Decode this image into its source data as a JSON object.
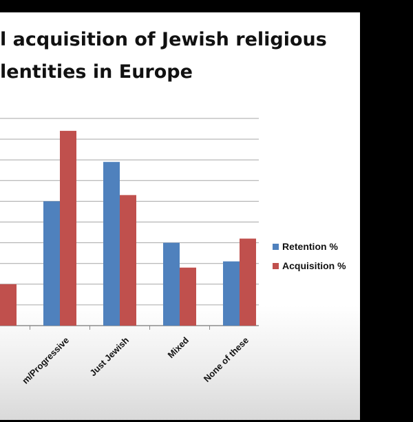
{
  "slide": {
    "title_line1": "l acquisition of Jewish religious",
    "title_line2": "lentities in Europe"
  },
  "chart_data": {
    "type": "bar",
    "title": "l acquisition of Jewish religious lentities in Europe",
    "xlabel": "",
    "ylabel": "",
    "categories": [
      "",
      "m/Progressive",
      "Just Jewish",
      "Mixed",
      "None of these"
    ],
    "series": [
      {
        "name": "Retention %",
        "color": "#4f81bd",
        "values": [
          null,
          6,
          7.9,
          4,
          3.1
        ]
      },
      {
        "name": "Acquisition %",
        "color": "#c0504d",
        "values": [
          2,
          9.4,
          6.3,
          2.8,
          4.2
        ]
      }
    ],
    "ylim": [
      0,
      10
    ],
    "grid": true,
    "legend": "right"
  }
}
